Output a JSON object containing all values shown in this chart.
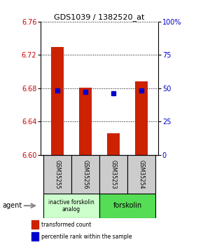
{
  "title": "GDS1039 / 1382520_at",
  "samples": [
    "GSM35255",
    "GSM35256",
    "GSM35253",
    "GSM35254"
  ],
  "bar_values": [
    6.73,
    6.681,
    6.626,
    6.688
  ],
  "bar_base": 6.6,
  "percentile_values": [
    6.677,
    6.676,
    6.674,
    6.677
  ],
  "ylim": [
    6.6,
    6.76
  ],
  "yticks_left": [
    6.6,
    6.64,
    6.68,
    6.72,
    6.76
  ],
  "yticks_right": [
    0,
    25,
    50,
    75,
    100
  ],
  "bar_color": "#cc2200",
  "percentile_color": "#0000cc",
  "bar_width": 0.45,
  "group1_label": "inactive forskolin\nanalog",
  "group2_label": "forskolin",
  "group1_color": "#ccffcc",
  "group2_color": "#55dd55",
  "legend_red": "transformed count",
  "legend_blue": "percentile rank within the sample",
  "agent_label": "agent",
  "left_axis_color": "#cc0000",
  "right_axis_color": "#0000cc",
  "bg_color": "#ffffff",
  "sample_box_color": "#cccccc"
}
